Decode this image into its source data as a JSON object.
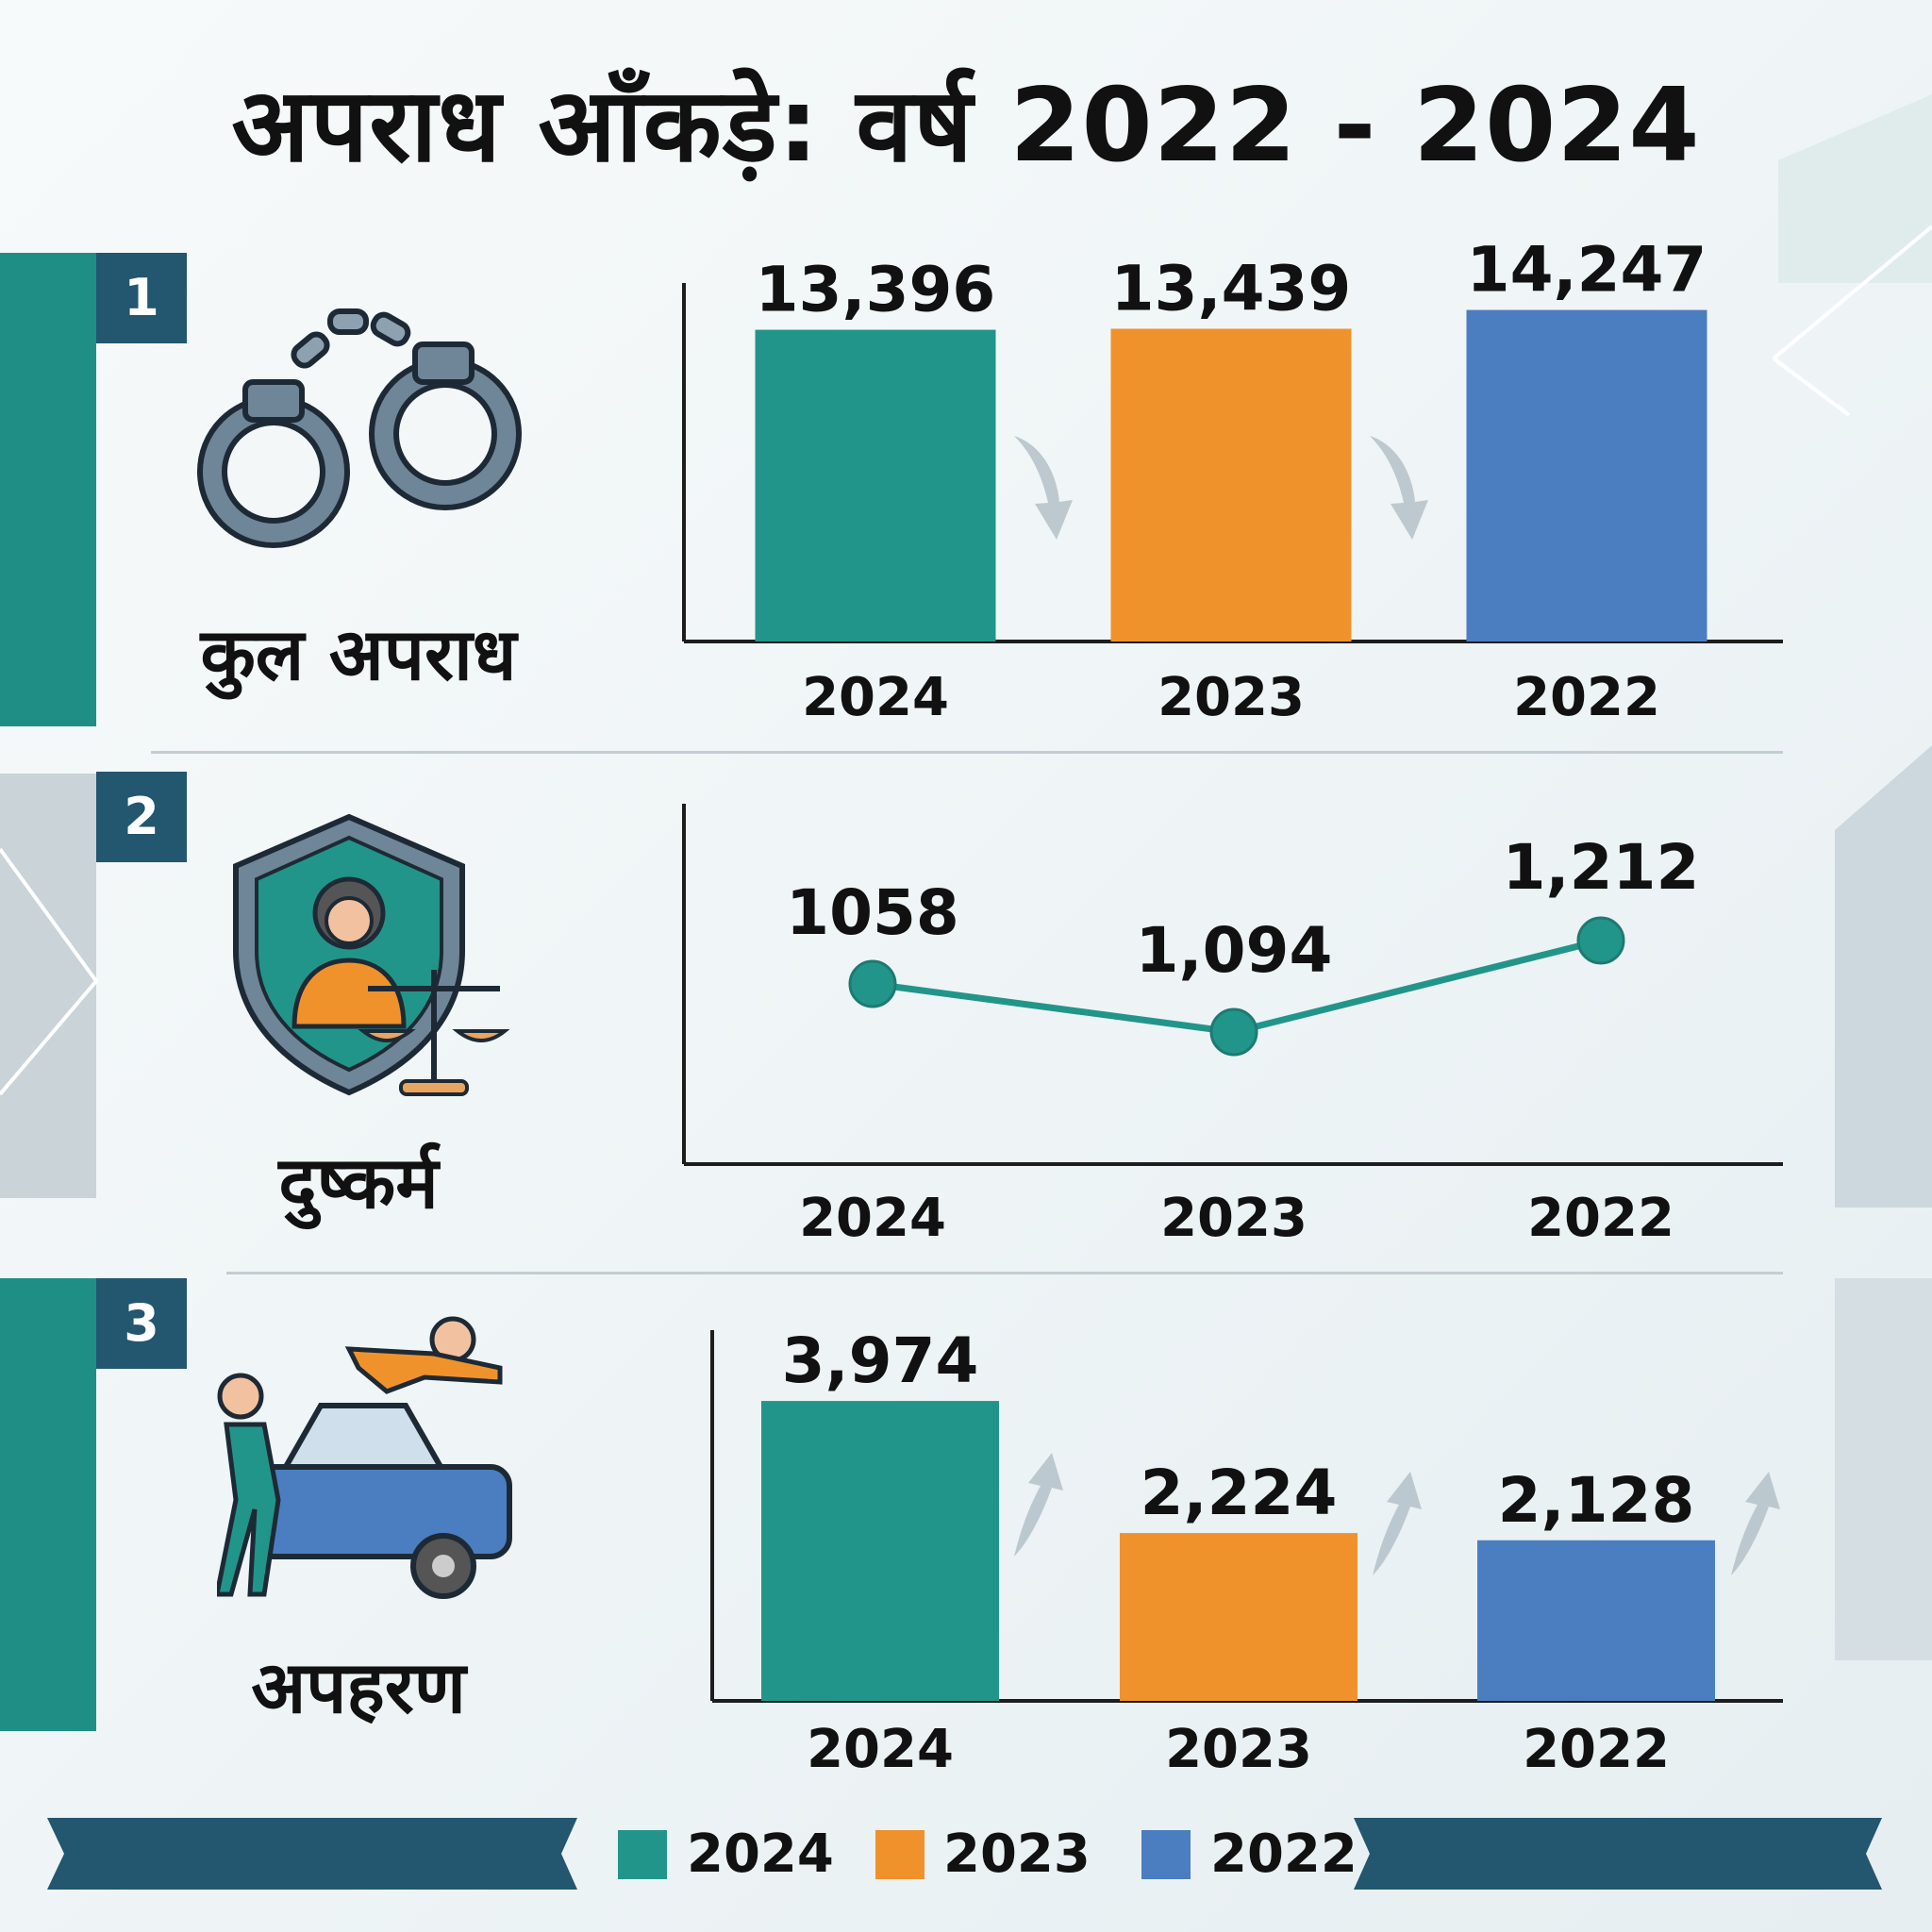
{
  "title": "अपराध आँकड़े: वर्ष 2022 - 2024",
  "colors": {
    "y2024": "#22958a",
    "y2023": "#f0922b",
    "y2022": "#4a7ec0",
    "badge": "#23566f"
  },
  "sections": [
    {
      "number": "1",
      "label": "कुल अपराध",
      "icon": "handcuffs-icon"
    },
    {
      "number": "2",
      "label": "दुष्कर्म",
      "icon": "shield-woman-justice-icon"
    },
    {
      "number": "3",
      "label": "अपहरण",
      "icon": "kidnapping-car-icon"
    }
  ],
  "chart_data": [
    {
      "type": "bar",
      "categories": [
        "2024",
        "2023",
        "2022"
      ],
      "values": [
        13396,
        13439,
        14247
      ],
      "value_labels": [
        "13,396",
        "13,439",
        "14,247"
      ],
      "xlabel": "",
      "ylabel": ""
    },
    {
      "type": "line",
      "categories": [
        "2024",
        "2023",
        "2022"
      ],
      "values": [
        1058,
        1094,
        1212
      ],
      "value_labels": [
        "1058",
        "1,094",
        "1,212"
      ],
      "xlabel": "",
      "ylabel": ""
    },
    {
      "type": "bar",
      "categories": [
        "2024",
        "2023",
        "2022"
      ],
      "values": [
        3974,
        2224,
        2128
      ],
      "value_labels": [
        "3,974",
        "2,224",
        "2,128"
      ],
      "xlabel": "",
      "ylabel": ""
    }
  ],
  "legend": [
    {
      "label": "2024",
      "color": "#22958a"
    },
    {
      "label": "2023",
      "color": "#f0922b"
    },
    {
      "label": "2022",
      "color": "#4a7ec0"
    }
  ]
}
